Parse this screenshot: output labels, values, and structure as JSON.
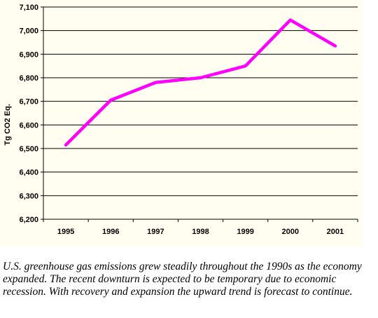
{
  "chart_data": {
    "type": "line",
    "title": "",
    "xlabel": "",
    "ylabel": "Tg CO2 Eq.",
    "categories": [
      "1995",
      "1996",
      "1997",
      "1998",
      "1999",
      "2000",
      "2001"
    ],
    "series": [
      {
        "values": [
          6515,
          6705,
          6780,
          6800,
          6850,
          7045,
          6935
        ],
        "color": "#ff00ff"
      }
    ],
    "ylim": [
      6200,
      7100
    ],
    "yticks": [
      6200,
      6300,
      6400,
      6500,
      6600,
      6700,
      6800,
      6900,
      7000,
      7100
    ],
    "ytick_labels": [
      "6,200",
      "6,300",
      "6,400",
      "6,500",
      "6,600",
      "6,700",
      "6,800",
      "6,900",
      "7,000",
      "7,100"
    ],
    "grid": "horizontal",
    "legend": "none"
  },
  "caption": "U.S. greenhouse gas emissions grew steadily throughout the 1990s as the economy expanded. The recent downturn is expected to be temporary due to economic recession. With recovery and expansion the upward trend is forecast to continue.",
  "colors": {
    "plot_background": "#fffef0",
    "line": "#ff00ff",
    "gridline": "#000000"
  }
}
